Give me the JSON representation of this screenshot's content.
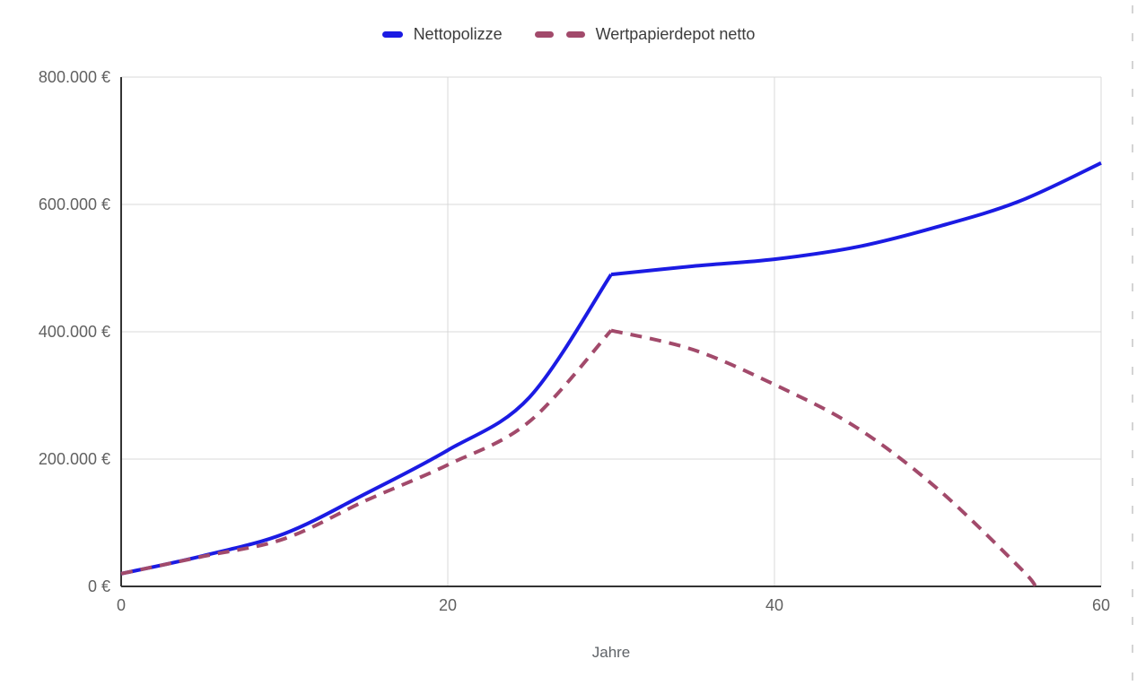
{
  "chart_data": {
    "type": "line",
    "title": "",
    "xlabel": "Jahre",
    "ylabel": "",
    "x_range": [
      0,
      60
    ],
    "y_range": [
      0,
      800000
    ],
    "grid": true,
    "legend_position": "top-center",
    "x_ticks": [
      {
        "value": 0,
        "label": "0"
      },
      {
        "value": 20,
        "label": "20"
      },
      {
        "value": 40,
        "label": "40"
      },
      {
        "value": 60,
        "label": "60"
      }
    ],
    "y_ticks": [
      {
        "value": 0,
        "label": "0 €"
      },
      {
        "value": 200000,
        "label": "200.000 €"
      },
      {
        "value": 400000,
        "label": "400.000 €"
      },
      {
        "value": 600000,
        "label": "600.000 €"
      },
      {
        "value": 800000,
        "label": "800.000 €"
      }
    ],
    "series": [
      {
        "name": "Nettopolizze",
        "color": "#1b1be3",
        "style": "solid",
        "kink_x": 30,
        "points": [
          [
            0,
            20000
          ],
          [
            5,
            48000
          ],
          [
            10,
            83000
          ],
          [
            15,
            146000
          ],
          [
            20,
            214000
          ],
          [
            25,
            297000
          ],
          [
            30,
            490000
          ],
          [
            35,
            503000
          ],
          [
            40,
            514000
          ],
          [
            45,
            533000
          ],
          [
            50,
            565000
          ],
          [
            55,
            605000
          ],
          [
            60,
            665000
          ]
        ]
      },
      {
        "name": "Wertpapierdepot netto",
        "color": "#a24a6b",
        "style": "dashed",
        "kink_x": 30,
        "points": [
          [
            0,
            20000
          ],
          [
            5,
            47000
          ],
          [
            10,
            75000
          ],
          [
            15,
            135000
          ],
          [
            20,
            191000
          ],
          [
            25,
            259000
          ],
          [
            30,
            402000
          ],
          [
            35,
            372000
          ],
          [
            40,
            317000
          ],
          [
            45,
            250000
          ],
          [
            50,
            153000
          ],
          [
            55,
            30000
          ],
          [
            56,
            0
          ]
        ]
      }
    ],
    "colors": {
      "axis": "#333333",
      "grid": "#d9d9d9",
      "tick_label": "#616161",
      "axis_title": "#5f6368"
    }
  }
}
